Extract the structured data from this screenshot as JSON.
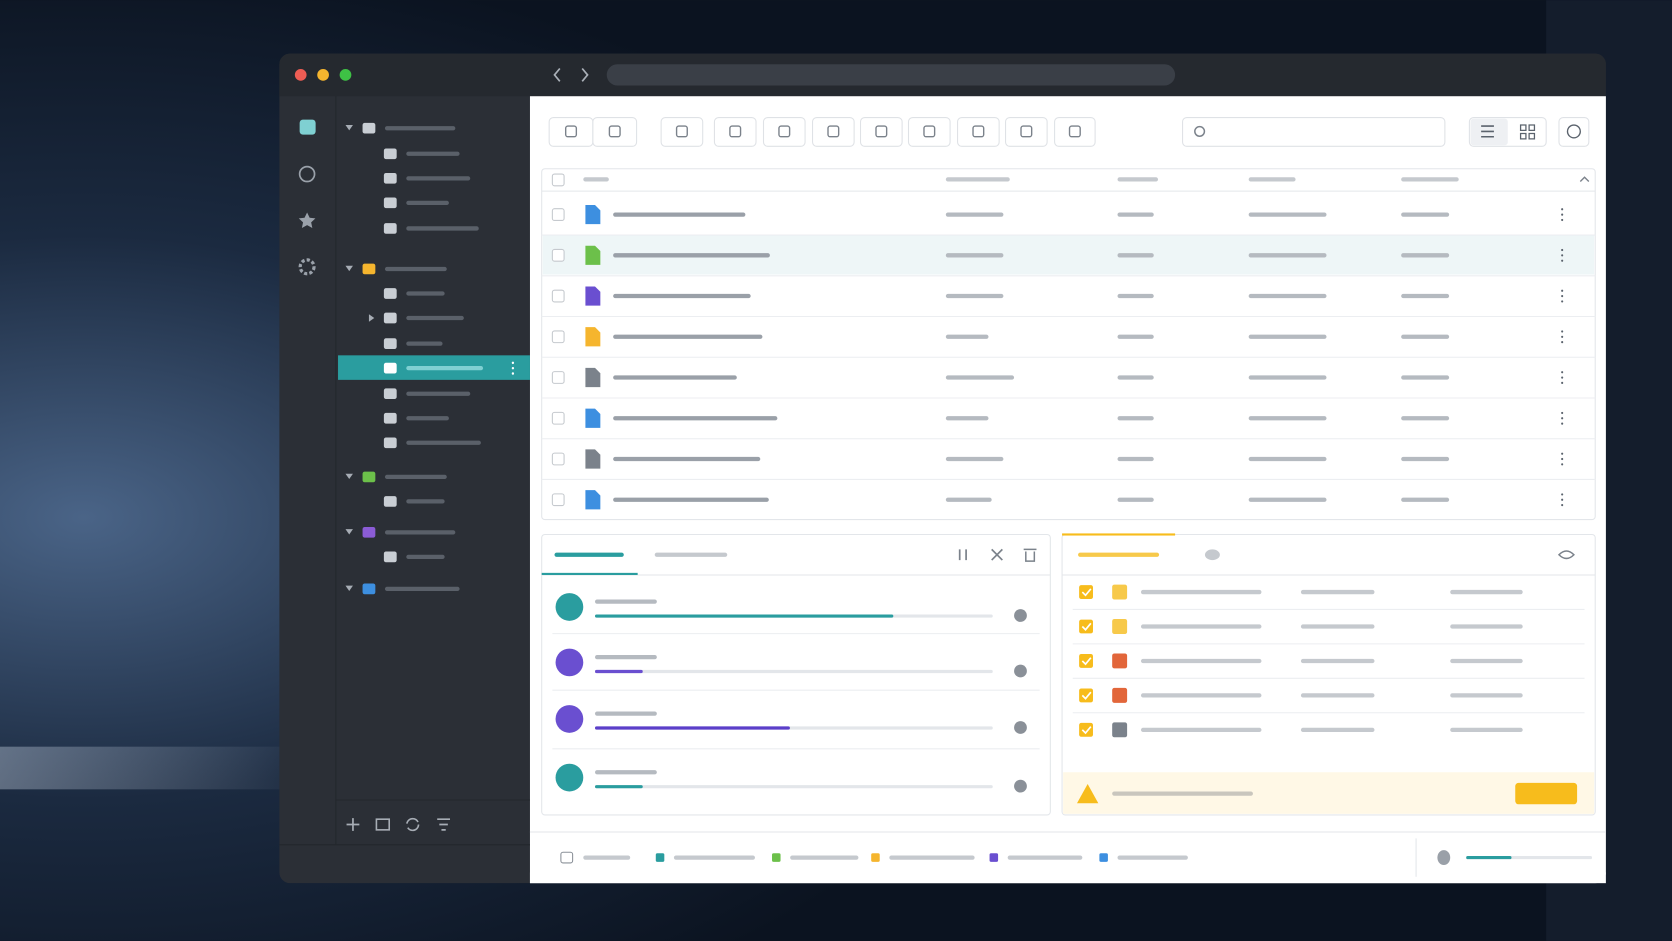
{
  "transfers": [
    {
      "progress": 75
    },
    {
      "progress": 12
    },
    {
      "progress": 49
    },
    {
      "progress": 12
    }
  ],
  "storage": {
    "used": 36
  }
}
